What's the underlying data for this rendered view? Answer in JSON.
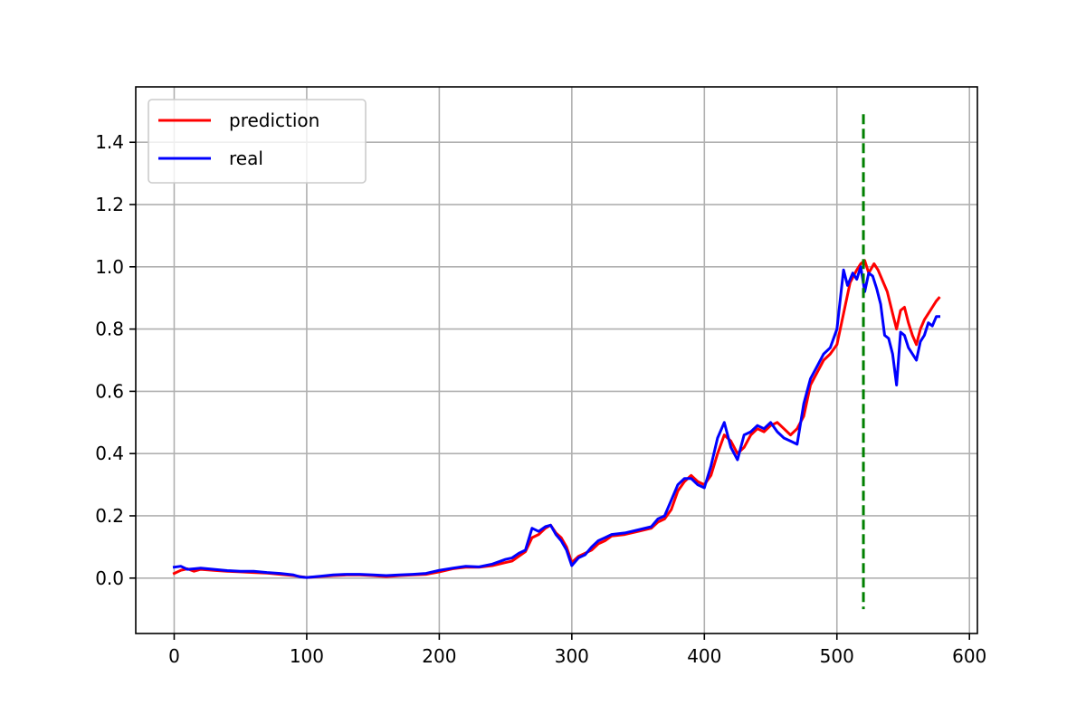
{
  "chart_data": {
    "type": "line",
    "title": "",
    "xlabel": "",
    "ylabel": "",
    "xlim": [
      -29,
      606
    ],
    "ylim": [
      -0.178,
      1.578
    ],
    "xticks": [
      0,
      100,
      200,
      300,
      400,
      500,
      600
    ],
    "xtick_labels": [
      "0",
      "100",
      "200",
      "300",
      "400",
      "500",
      "600"
    ],
    "yticks": [
      0.0,
      0.2,
      0.4,
      0.6,
      0.8,
      1.0,
      1.2,
      1.4
    ],
    "ytick_labels": [
      "0.0",
      "0.2",
      "0.4",
      "0.6",
      "0.8",
      "1.0",
      "1.2",
      "1.4"
    ],
    "grid": true,
    "legend_position": "top-left",
    "series": [
      {
        "name": "prediction",
        "color": "#ff0000",
        "points": [
          [
            0,
            0.015
          ],
          [
            5,
            0.025
          ],
          [
            10,
            0.03
          ],
          [
            15,
            0.022
          ],
          [
            20,
            0.028
          ],
          [
            30,
            0.025
          ],
          [
            40,
            0.022
          ],
          [
            50,
            0.02
          ],
          [
            60,
            0.018
          ],
          [
            70,
            0.016
          ],
          [
            80,
            0.012
          ],
          [
            90,
            0.008
          ],
          [
            95,
            0.005
          ],
          [
            100,
            0.002
          ],
          [
            110,
            0.005
          ],
          [
            120,
            0.008
          ],
          [
            130,
            0.01
          ],
          [
            140,
            0.01
          ],
          [
            150,
            0.008
          ],
          [
            160,
            0.005
          ],
          [
            170,
            0.008
          ],
          [
            180,
            0.01
          ],
          [
            190,
            0.012
          ],
          [
            200,
            0.02
          ],
          [
            210,
            0.03
          ],
          [
            220,
            0.035
          ],
          [
            230,
            0.035
          ],
          [
            240,
            0.04
          ],
          [
            250,
            0.05
          ],
          [
            255,
            0.055
          ],
          [
            260,
            0.07
          ],
          [
            265,
            0.085
          ],
          [
            270,
            0.13
          ],
          [
            275,
            0.14
          ],
          [
            280,
            0.16
          ],
          [
            284,
            0.17
          ],
          [
            288,
            0.145
          ],
          [
            292,
            0.13
          ],
          [
            296,
            0.1
          ],
          [
            300,
            0.05
          ],
          [
            305,
            0.07
          ],
          [
            310,
            0.08
          ],
          [
            315,
            0.09
          ],
          [
            320,
            0.11
          ],
          [
            325,
            0.12
          ],
          [
            330,
            0.135
          ],
          [
            340,
            0.14
          ],
          [
            350,
            0.15
          ],
          [
            360,
            0.16
          ],
          [
            365,
            0.18
          ],
          [
            370,
            0.19
          ],
          [
            375,
            0.22
          ],
          [
            380,
            0.28
          ],
          [
            385,
            0.31
          ],
          [
            390,
            0.33
          ],
          [
            395,
            0.31
          ],
          [
            400,
            0.3
          ],
          [
            405,
            0.33
          ],
          [
            410,
            0.4
          ],
          [
            415,
            0.46
          ],
          [
            420,
            0.44
          ],
          [
            425,
            0.4
          ],
          [
            430,
            0.42
          ],
          [
            435,
            0.46
          ],
          [
            440,
            0.48
          ],
          [
            445,
            0.47
          ],
          [
            450,
            0.49
          ],
          [
            455,
            0.5
          ],
          [
            460,
            0.48
          ],
          [
            465,
            0.46
          ],
          [
            470,
            0.48
          ],
          [
            475,
            0.52
          ],
          [
            480,
            0.62
          ],
          [
            485,
            0.66
          ],
          [
            490,
            0.7
          ],
          [
            495,
            0.72
          ],
          [
            500,
            0.75
          ],
          [
            505,
            0.85
          ],
          [
            510,
            0.95
          ],
          [
            515,
            0.99
          ],
          [
            518,
            1.01
          ],
          [
            521,
            1.02
          ],
          [
            524,
            0.98
          ],
          [
            528,
            1.01
          ],
          [
            531,
            0.99
          ],
          [
            535,
            0.95
          ],
          [
            538,
            0.92
          ],
          [
            542,
            0.85
          ],
          [
            545,
            0.8
          ],
          [
            548,
            0.86
          ],
          [
            551,
            0.87
          ],
          [
            554,
            0.82
          ],
          [
            557,
            0.78
          ],
          [
            560,
            0.75
          ],
          [
            563,
            0.8
          ],
          [
            566,
            0.83
          ],
          [
            569,
            0.85
          ],
          [
            572,
            0.87
          ],
          [
            575,
            0.89
          ],
          [
            577,
            0.9
          ]
        ]
      },
      {
        "name": "real",
        "color": "#0000ff",
        "points": [
          [
            0,
            0.035
          ],
          [
            5,
            0.038
          ],
          [
            10,
            0.028
          ],
          [
            15,
            0.03
          ],
          [
            20,
            0.032
          ],
          [
            30,
            0.028
          ],
          [
            40,
            0.024
          ],
          [
            50,
            0.022
          ],
          [
            60,
            0.022
          ],
          [
            70,
            0.018
          ],
          [
            80,
            0.015
          ],
          [
            90,
            0.01
          ],
          [
            95,
            0.004
          ],
          [
            100,
            0.002
          ],
          [
            110,
            0.006
          ],
          [
            120,
            0.01
          ],
          [
            130,
            0.012
          ],
          [
            140,
            0.012
          ],
          [
            150,
            0.01
          ],
          [
            160,
            0.008
          ],
          [
            170,
            0.01
          ],
          [
            180,
            0.012
          ],
          [
            190,
            0.015
          ],
          [
            200,
            0.025
          ],
          [
            210,
            0.032
          ],
          [
            220,
            0.038
          ],
          [
            230,
            0.036
          ],
          [
            240,
            0.045
          ],
          [
            250,
            0.06
          ],
          [
            255,
            0.065
          ],
          [
            260,
            0.08
          ],
          [
            265,
            0.09
          ],
          [
            270,
            0.16
          ],
          [
            275,
            0.15
          ],
          [
            280,
            0.165
          ],
          [
            284,
            0.17
          ],
          [
            288,
            0.14
          ],
          [
            292,
            0.12
          ],
          [
            296,
            0.09
          ],
          [
            300,
            0.04
          ],
          [
            305,
            0.065
          ],
          [
            310,
            0.075
          ],
          [
            315,
            0.1
          ],
          [
            320,
            0.12
          ],
          [
            325,
            0.13
          ],
          [
            330,
            0.14
          ],
          [
            340,
            0.145
          ],
          [
            350,
            0.155
          ],
          [
            360,
            0.165
          ],
          [
            365,
            0.19
          ],
          [
            370,
            0.2
          ],
          [
            375,
            0.25
          ],
          [
            380,
            0.3
          ],
          [
            385,
            0.32
          ],
          [
            390,
            0.32
          ],
          [
            395,
            0.3
          ],
          [
            400,
            0.29
          ],
          [
            405,
            0.36
          ],
          [
            410,
            0.45
          ],
          [
            415,
            0.5
          ],
          [
            420,
            0.42
          ],
          [
            425,
            0.38
          ],
          [
            430,
            0.46
          ],
          [
            435,
            0.47
          ],
          [
            440,
            0.49
          ],
          [
            445,
            0.48
          ],
          [
            450,
            0.5
          ],
          [
            455,
            0.47
          ],
          [
            460,
            0.45
          ],
          [
            465,
            0.44
          ],
          [
            470,
            0.43
          ],
          [
            475,
            0.56
          ],
          [
            480,
            0.64
          ],
          [
            485,
            0.68
          ],
          [
            490,
            0.72
          ],
          [
            495,
            0.74
          ],
          [
            500,
            0.8
          ],
          [
            505,
            0.99
          ],
          [
            508,
            0.94
          ],
          [
            512,
            0.98
          ],
          [
            515,
            0.96
          ],
          [
            518,
            1.0
          ],
          [
            521,
            0.92
          ],
          [
            524,
            0.98
          ],
          [
            527,
            0.97
          ],
          [
            530,
            0.93
          ],
          [
            533,
            0.88
          ],
          [
            536,
            0.78
          ],
          [
            539,
            0.77
          ],
          [
            542,
            0.72
          ],
          [
            545,
            0.62
          ],
          [
            548,
            0.79
          ],
          [
            551,
            0.78
          ],
          [
            554,
            0.74
          ],
          [
            557,
            0.72
          ],
          [
            560,
            0.7
          ],
          [
            563,
            0.76
          ],
          [
            566,
            0.78
          ],
          [
            569,
            0.82
          ],
          [
            572,
            0.81
          ],
          [
            575,
            0.84
          ],
          [
            577,
            0.84
          ]
        ]
      }
    ],
    "vline": {
      "x": 520,
      "y_range": [
        -0.1,
        1.49
      ],
      "color": "#008000",
      "style": "dashed"
    }
  }
}
